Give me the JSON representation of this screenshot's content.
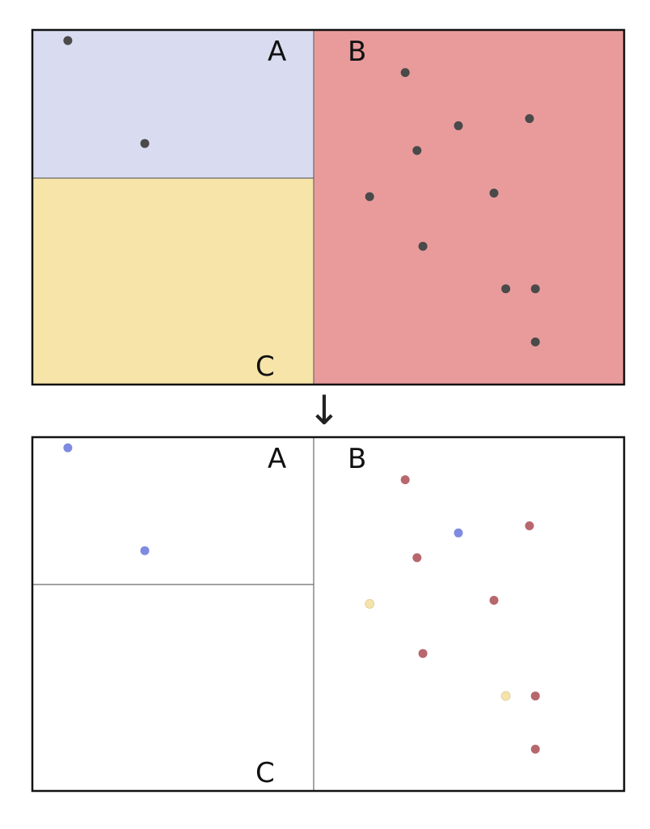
{
  "regions": {
    "A": {
      "label": "A",
      "fill": "#d9dcf0",
      "point_color": "#7e8be0"
    },
    "B": {
      "label": "B",
      "fill": "#e99b9b",
      "point_color": "#b7676d"
    },
    "C": {
      "label": "C",
      "fill": "#f6e4a9",
      "point_color": "#f4e3ad"
    }
  },
  "top_panel": {
    "point_color": "#4a4a4a"
  },
  "arrow": {
    "glyph": "↓",
    "meaning": "transformation-from-top-to-bottom"
  },
  "points": [
    {
      "region": "A",
      "x": 0.06,
      "y": 0.03
    },
    {
      "region": "A",
      "x": 0.19,
      "y": 0.32
    },
    {
      "region": "A",
      "x": 0.72,
      "y": 0.27
    },
    {
      "region": "C",
      "x": 0.57,
      "y": 0.47
    },
    {
      "region": "C",
      "x": 0.8,
      "y": 0.73
    },
    {
      "region": "B",
      "x": 0.63,
      "y": 0.12
    },
    {
      "region": "B",
      "x": 0.84,
      "y": 0.25
    },
    {
      "region": "B",
      "x": 0.65,
      "y": 0.34
    },
    {
      "region": "B",
      "x": 0.78,
      "y": 0.46
    },
    {
      "region": "B",
      "x": 0.66,
      "y": 0.61
    },
    {
      "region": "B",
      "x": 0.85,
      "y": 0.73
    },
    {
      "region": "B",
      "x": 0.85,
      "y": 0.88
    }
  ]
}
